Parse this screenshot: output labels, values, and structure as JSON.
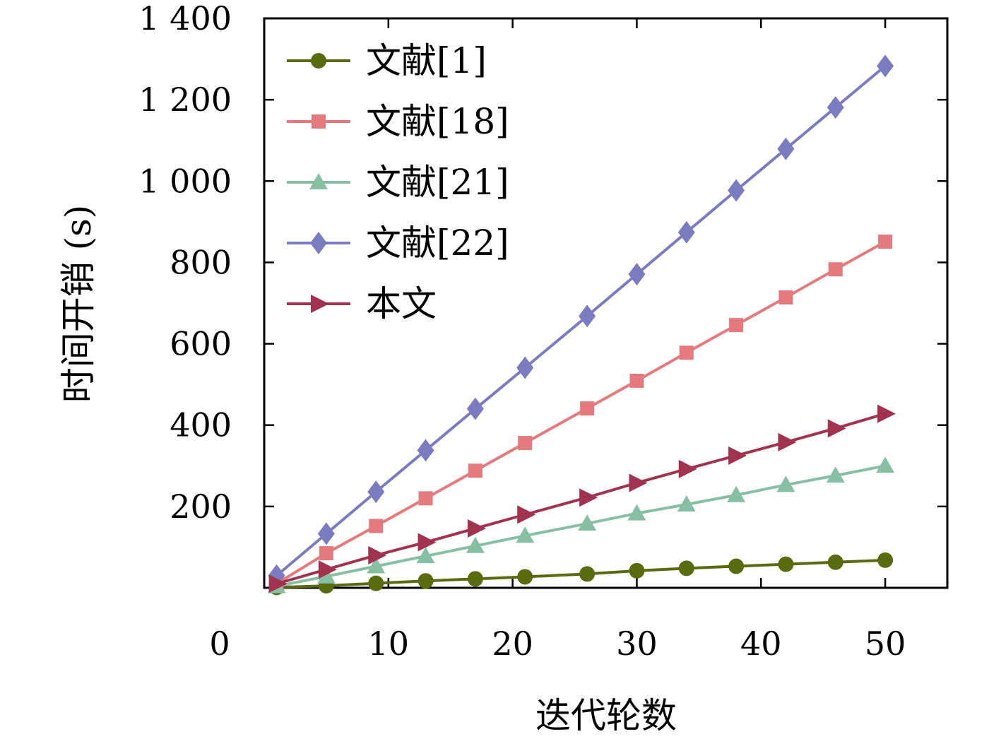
{
  "chart_data": {
    "type": "line",
    "title": "",
    "xlabel": "迭代轮数",
    "ylabel": "时间开销 (s)",
    "xlim": [
      0,
      55
    ],
    "ylim": [
      0,
      1400
    ],
    "x_origin_label": "0",
    "xticks": [
      10,
      20,
      30,
      40,
      50
    ],
    "xtick_labels": [
      "10",
      "20",
      "30",
      "40",
      "50"
    ],
    "yticks": [
      200,
      400,
      600,
      800,
      1000,
      1200,
      1400
    ],
    "ytick_labels": [
      "200",
      "400",
      "600",
      "800",
      "1 000",
      "1 200",
      "1 400"
    ],
    "x": [
      1,
      5,
      9,
      13,
      17,
      21,
      26,
      30,
      34,
      38,
      42,
      46,
      50
    ],
    "legend_position": "top-left",
    "series": [
      {
        "name": "文献[1]",
        "color": "#5a6a0e",
        "marker": "circle",
        "values": [
          1,
          5,
          11,
          17,
          22,
          27,
          34,
          42,
          48,
          53,
          58,
          63,
          68
        ]
      },
      {
        "name": "文献[18]",
        "color": "#e57a7e",
        "marker": "square",
        "values": [
          10,
          85,
          152,
          220,
          288,
          356,
          441,
          509,
          578,
          646,
          714,
          783,
          851
        ]
      },
      {
        "name": "文献[21]",
        "color": "#86bfa3",
        "marker": "triangle",
        "values": [
          4,
          28,
          53,
          78,
          103,
          128,
          158,
          183,
          205,
          228,
          253,
          276,
          300
        ]
      },
      {
        "name": "文献[22]",
        "color": "#7b7bbf",
        "marker": "diamond",
        "values": [
          30,
          133,
          236,
          338,
          440,
          541,
          668,
          771,
          874,
          977,
          1079,
          1181,
          1283
        ]
      },
      {
        "name": "本文",
        "color": "#a23350",
        "marker": "triangle-right",
        "values": [
          10,
          45,
          80,
          112,
          146,
          180,
          222,
          258,
          292,
          325,
          358,
          392,
          428
        ]
      }
    ]
  }
}
